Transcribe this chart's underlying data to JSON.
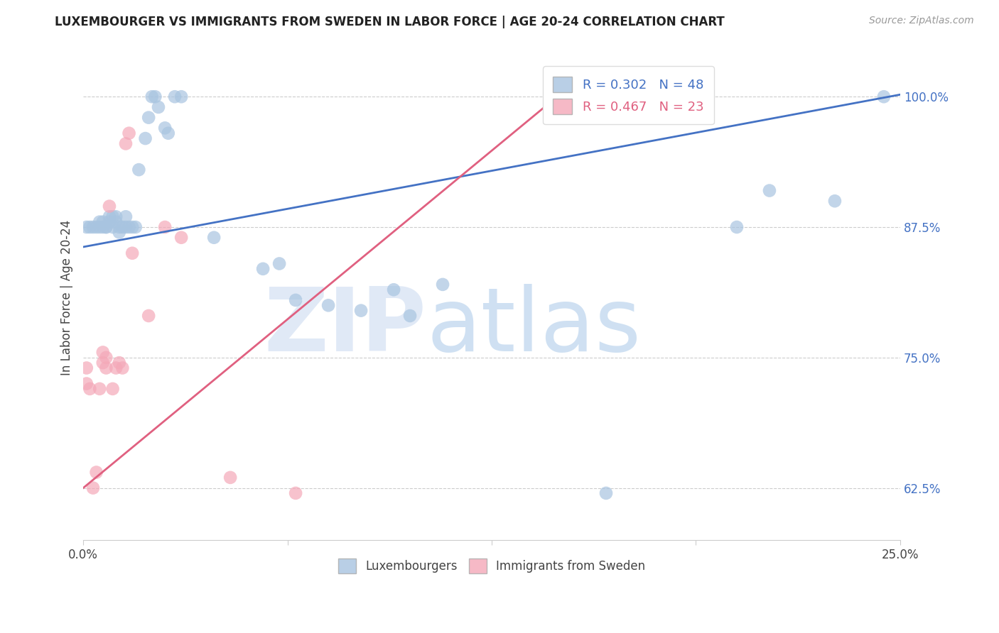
{
  "title": "LUXEMBOURGER VS IMMIGRANTS FROM SWEDEN IN LABOR FORCE | AGE 20-24 CORRELATION CHART",
  "source": "Source: ZipAtlas.com",
  "ylabel": "In Labor Force | Age 20-24",
  "xlim": [
    0.0,
    0.25
  ],
  "ylim": [
    0.575,
    1.04
  ],
  "xticks": [
    0.0,
    0.0625,
    0.125,
    0.1875,
    0.25
  ],
  "xtick_labels": [
    "0.0%",
    "",
    "",
    "",
    "25.0%"
  ],
  "ytick_labels": [
    "62.5%",
    "75.0%",
    "87.5%",
    "100.0%"
  ],
  "yticks": [
    0.625,
    0.75,
    0.875,
    1.0
  ],
  "blue_R": 0.302,
  "blue_N": 48,
  "pink_R": 0.467,
  "pink_N": 23,
  "blue_color": "#A8C4E0",
  "pink_color": "#F4A8B8",
  "blue_line_color": "#4472C4",
  "pink_line_color": "#E06080",
  "watermark_zip": "ZIP",
  "watermark_atlas": "atlas",
  "watermark_color_zip": "#C8D8F0",
  "watermark_color_atlas": "#A8C8E8",
  "blue_x": [
    0.001,
    0.002,
    0.003,
    0.004,
    0.005,
    0.005,
    0.006,
    0.006,
    0.007,
    0.007,
    0.008,
    0.008,
    0.009,
    0.009,
    0.01,
    0.01,
    0.011,
    0.011,
    0.012,
    0.013,
    0.013,
    0.014,
    0.015,
    0.016,
    0.017,
    0.019,
    0.02,
    0.021,
    0.022,
    0.023,
    0.025,
    0.026,
    0.028,
    0.03,
    0.04,
    0.055,
    0.06,
    0.065,
    0.075,
    0.085,
    0.095,
    0.1,
    0.11,
    0.16,
    0.2,
    0.21,
    0.23,
    0.245
  ],
  "blue_y": [
    0.875,
    0.875,
    0.875,
    0.875,
    0.875,
    0.88,
    0.875,
    0.88,
    0.875,
    0.875,
    0.88,
    0.885,
    0.875,
    0.885,
    0.88,
    0.885,
    0.87,
    0.875,
    0.875,
    0.875,
    0.885,
    0.875,
    0.875,
    0.875,
    0.93,
    0.96,
    0.98,
    1.0,
    1.0,
    0.99,
    0.97,
    0.965,
    1.0,
    1.0,
    0.865,
    0.835,
    0.84,
    0.805,
    0.8,
    0.795,
    0.815,
    0.79,
    0.82,
    0.62,
    0.875,
    0.91,
    0.9,
    1.0
  ],
  "pink_x": [
    0.001,
    0.001,
    0.002,
    0.003,
    0.004,
    0.005,
    0.006,
    0.006,
    0.007,
    0.007,
    0.008,
    0.009,
    0.01,
    0.011,
    0.012,
    0.013,
    0.014,
    0.015,
    0.02,
    0.025,
    0.03,
    0.045,
    0.065
  ],
  "pink_y": [
    0.725,
    0.74,
    0.72,
    0.625,
    0.64,
    0.72,
    0.745,
    0.755,
    0.74,
    0.75,
    0.895,
    0.72,
    0.74,
    0.745,
    0.74,
    0.955,
    0.965,
    0.85,
    0.79,
    0.875,
    0.865,
    0.635,
    0.62
  ]
}
